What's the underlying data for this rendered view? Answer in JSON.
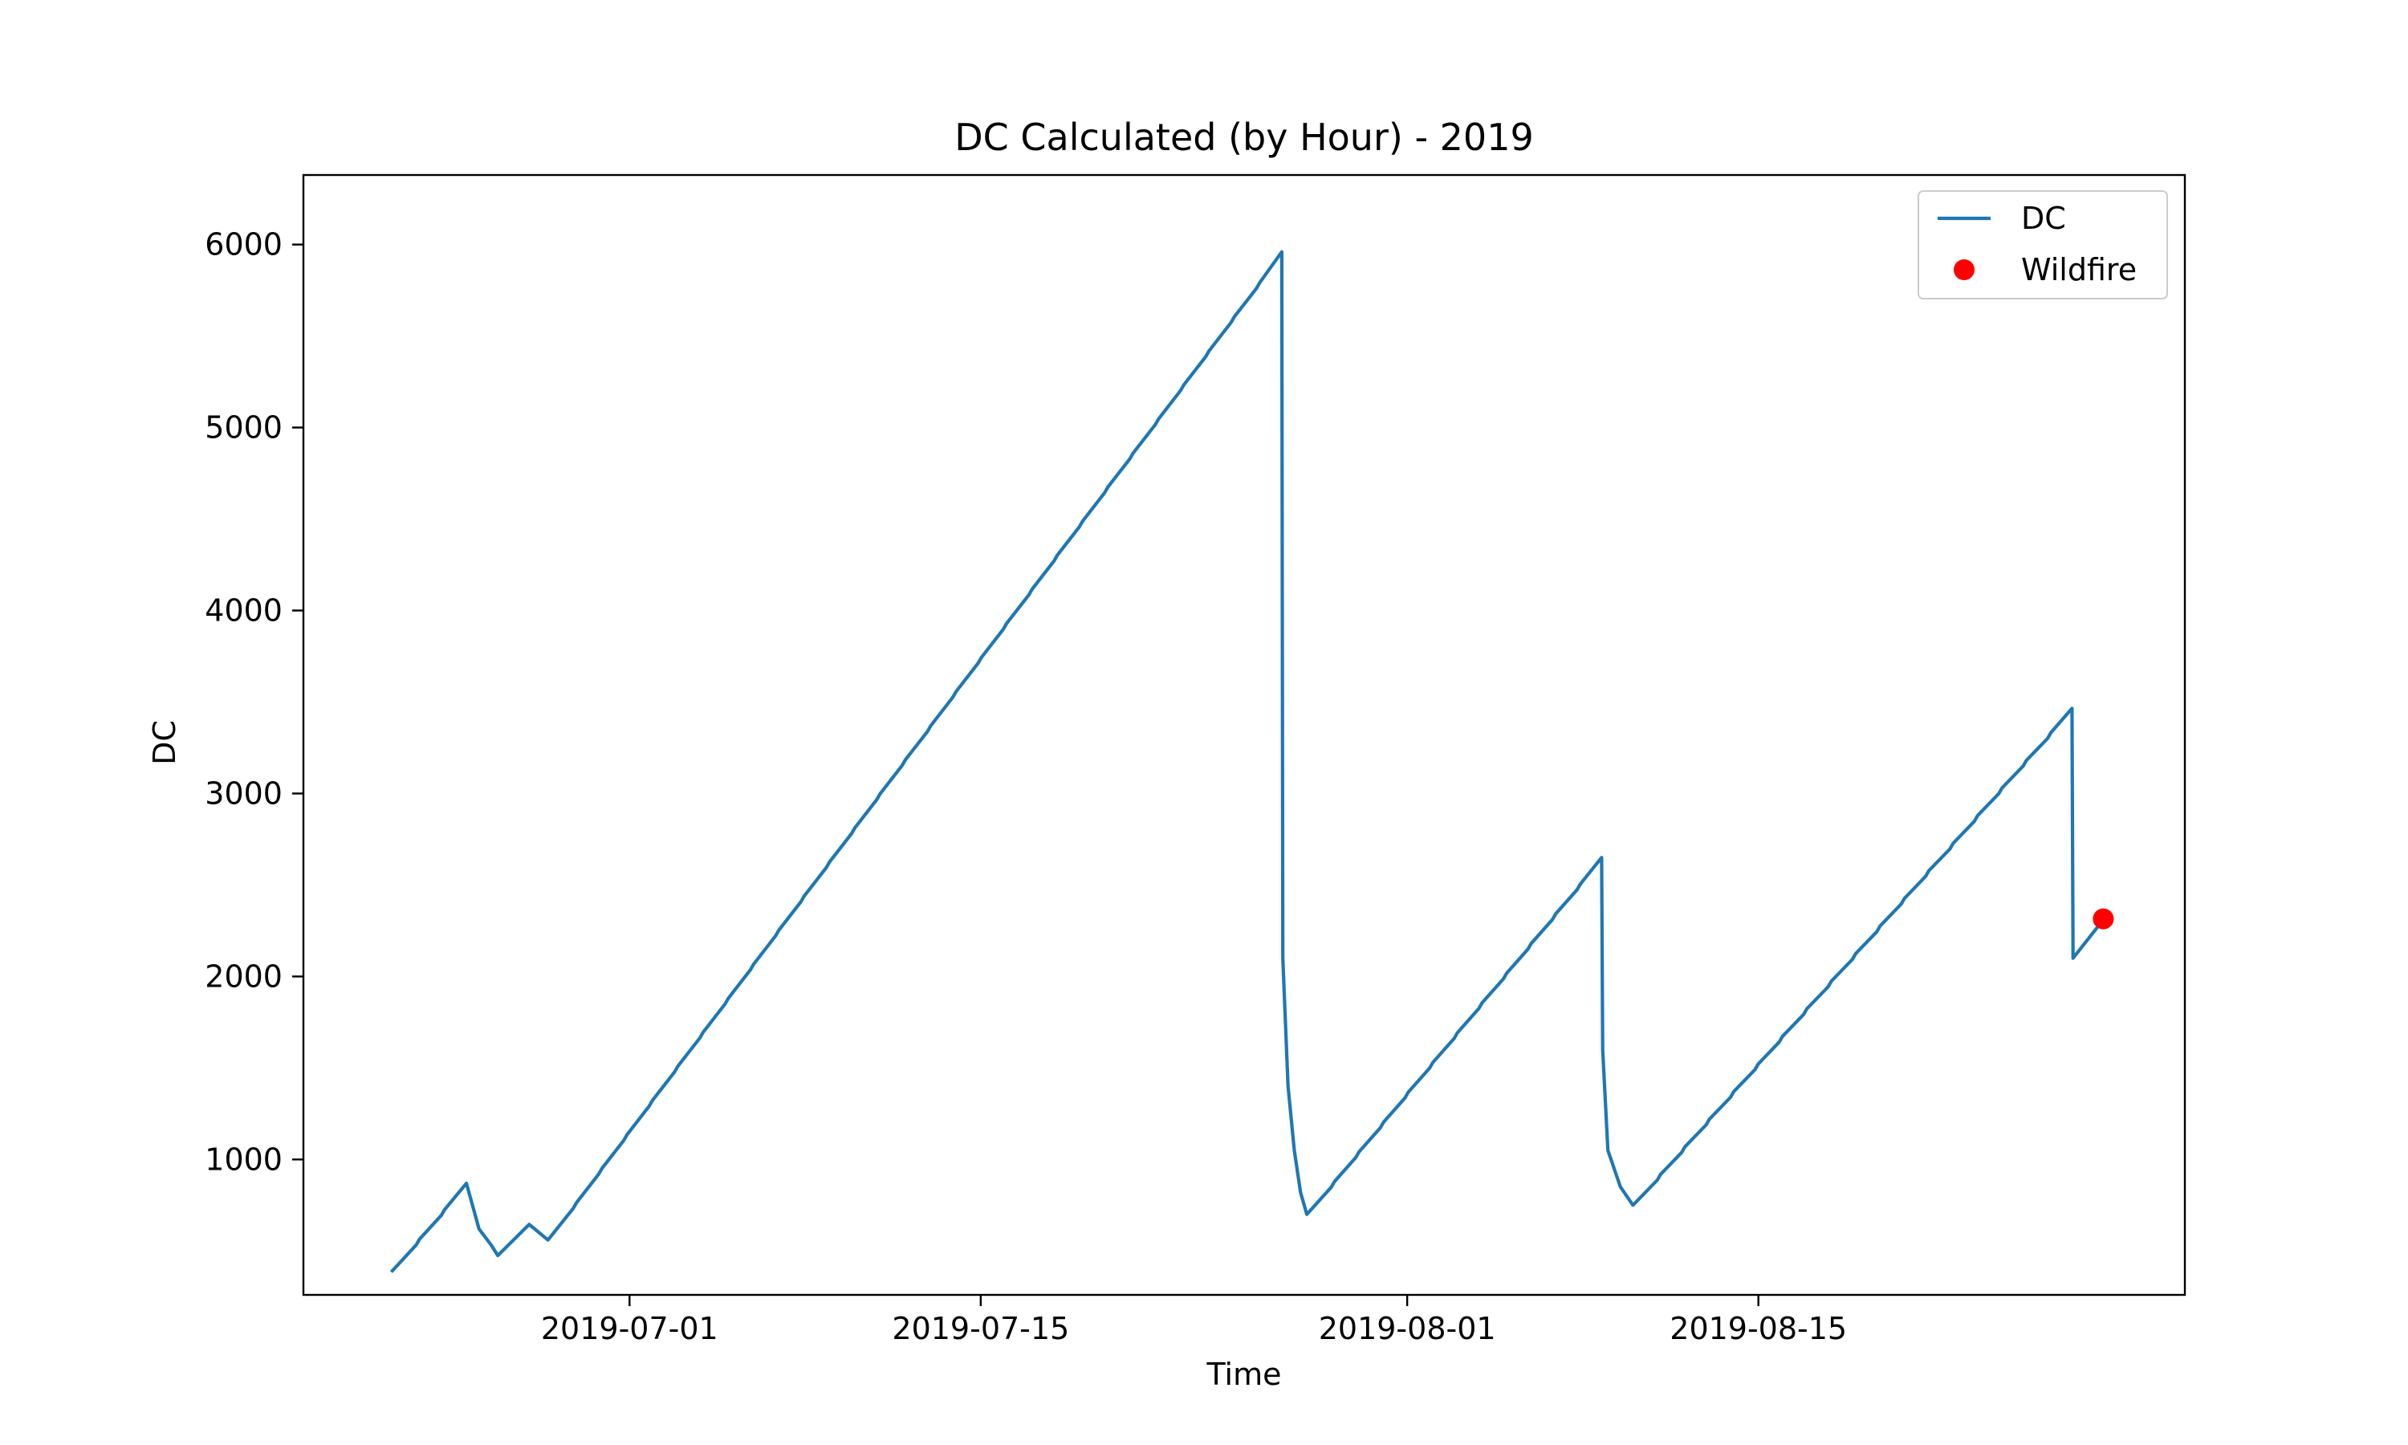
{
  "chart_data": {
    "type": "line",
    "title": "DC Calculated (by Hour) - 2019",
    "xlabel": "Time",
    "ylabel": "DC",
    "x_tick_labels": [
      "2019-07-01",
      "2019-07-15",
      "2019-08-01",
      "2019-08-15"
    ],
    "y_tick_labels": [
      "1000",
      "2000",
      "3000",
      "4000",
      "5000",
      "6000"
    ],
    "x_range": [
      "2019-06-18",
      "2019-09-01"
    ],
    "y_range": [
      260,
      6380
    ],
    "legend_position": "top-right",
    "grid": false,
    "series": [
      {
        "name": "DC",
        "kind": "line",
        "color": "#1f77b4",
        "points": [
          {
            "x": "2019-06-21T12:00",
            "y": 385
          },
          {
            "x": "2019-06-24T12:00",
            "y": 870
          },
          {
            "x": "2019-06-25T00:00",
            "y": 620
          },
          {
            "x": "2019-06-25T12:00",
            "y": 530
          },
          {
            "x": "2019-06-25T18:00",
            "y": 475
          },
          {
            "x": "2019-06-27T00:00",
            "y": 645
          },
          {
            "x": "2019-06-27T18:00",
            "y": 560
          },
          {
            "x": "2019-07-27T00:00",
            "y": 5960
          },
          {
            "x": "2019-07-27T01:00",
            "y": 2100
          },
          {
            "x": "2019-07-27T06:00",
            "y": 1400
          },
          {
            "x": "2019-07-27T12:00",
            "y": 1050
          },
          {
            "x": "2019-07-27T18:00",
            "y": 820
          },
          {
            "x": "2019-07-28T00:00",
            "y": 700
          },
          {
            "x": "2019-08-08T18:00",
            "y": 2650
          },
          {
            "x": "2019-08-08T19:00",
            "y": 1600
          },
          {
            "x": "2019-08-09T00:00",
            "y": 1050
          },
          {
            "x": "2019-08-09T12:00",
            "y": 850
          },
          {
            "x": "2019-08-10T00:00",
            "y": 750
          },
          {
            "x": "2019-08-27T12:00",
            "y": 3465
          },
          {
            "x": "2019-08-27T13:00",
            "y": 2100
          },
          {
            "x": "2019-08-28T18:00",
            "y": 2310
          }
        ]
      },
      {
        "name": "Wildfire",
        "kind": "scatter",
        "color": "#ff0000",
        "points": [
          {
            "x": "2019-08-28T18:00",
            "y": 2315
          }
        ]
      }
    ]
  }
}
